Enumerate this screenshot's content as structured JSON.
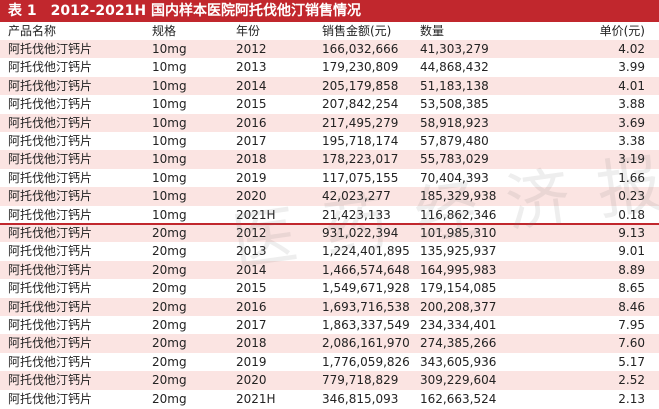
{
  "title": "表 1　2012-2021H 国内样本医院阿托伐他汀销售情况",
  "watermark": "医药经济报",
  "table": {
    "header": [
      "产品名称",
      "规格",
      "年份",
      "销售金额(元)",
      "数量",
      "单价(元)"
    ],
    "rows": [
      [
        "阿托伐他汀钙片",
        "10mg",
        "2012",
        "166,032,666",
        "41,303,279",
        "4.02"
      ],
      [
        "阿托伐他汀钙片",
        "10mg",
        "2013",
        "179,230,809",
        "44,868,432",
        "3.99"
      ],
      [
        "阿托伐他汀钙片",
        "10mg",
        "2014",
        "205,179,858",
        "51,183,138",
        "4.01"
      ],
      [
        "阿托伐他汀钙片",
        "10mg",
        "2015",
        "207,842,254",
        "53,508,385",
        "3.88"
      ],
      [
        "阿托伐他汀钙片",
        "10mg",
        "2016",
        "217,495,279",
        "58,918,923",
        "3.69"
      ],
      [
        "阿托伐他汀钙片",
        "10mg",
        "2017",
        "195,718,174",
        "57,879,480",
        "3.38"
      ],
      [
        "阿托伐他汀钙片",
        "10mg",
        "2018",
        "178,223,017",
        "55,783,029",
        "3.19"
      ],
      [
        "阿托伐他汀钙片",
        "10mg",
        "2019",
        "117,075,155",
        "70,404,393",
        "1.66"
      ],
      [
        "阿托伐他汀钙片",
        "10mg",
        "2020",
        "42,023,277",
        "185,329,938",
        "0.23"
      ],
      [
        "阿托伐他汀钙片",
        "10mg",
        "2021H",
        "21,423,133",
        "116,862,346",
        "0.18"
      ],
      [
        "阿托伐他汀钙片",
        "20mg",
        "2012",
        "931,022,394",
        "101,985,310",
        "9.13"
      ],
      [
        "阿托伐他汀钙片",
        "20mg",
        "2013",
        "1,224,401,895",
        "135,925,937",
        "9.01"
      ],
      [
        "阿托伐他汀钙片",
        "20mg",
        "2014",
        "1,466,574,648",
        "164,995,983",
        "8.89"
      ],
      [
        "阿托伐他汀钙片",
        "20mg",
        "2015",
        "1,549,671,928",
        "179,154,085",
        "8.65"
      ],
      [
        "阿托伐他汀钙片",
        "20mg",
        "2016",
        "1,693,716,538",
        "200,208,377",
        "8.46"
      ],
      [
        "阿托伐他汀钙片",
        "20mg",
        "2017",
        "1,863,337,549",
        "234,334,401",
        "7.95"
      ],
      [
        "阿托伐他汀钙片",
        "20mg",
        "2018",
        "2,086,161,970",
        "274,385,266",
        "7.60"
      ],
      [
        "阿托伐他汀钙片",
        "20mg",
        "2019",
        "1,776,059,826",
        "343,605,936",
        "5.17"
      ],
      [
        "阿托伐他汀钙片",
        "20mg",
        "2020",
        "779,718,829",
        "309,229,604",
        "2.52"
      ],
      [
        "阿托伐他汀钙片",
        "20mg",
        "2021H",
        "346,815,093",
        "162,663,524",
        "2.13"
      ]
    ]
  }
}
